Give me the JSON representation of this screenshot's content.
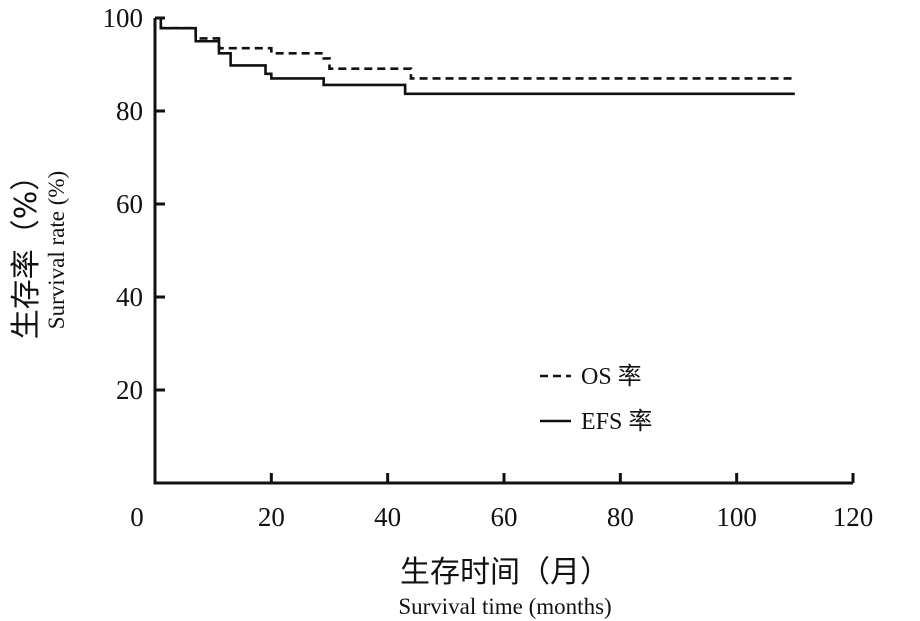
{
  "chart_data": {
    "type": "line",
    "xlabel_cn": "生存时间（月）",
    "xlabel": "Survival time (months)",
    "ylabel_cn": "生存率（%）",
    "ylabel": "Survival rate (%)",
    "xlim": [
      0,
      120
    ],
    "ylim": [
      0,
      100
    ],
    "x_ticks": [
      "0",
      "20",
      "40",
      "60",
      "80",
      "100",
      "120"
    ],
    "y_ticks": [
      "20",
      "40",
      "60",
      "80",
      "100"
    ],
    "legend_position": "bottom-right",
    "grid": false,
    "series": [
      {
        "name": "OS 率",
        "style": "dashed",
        "x": [
          0,
          1,
          7,
          10,
          11,
          20,
          29,
          30,
          44,
          110
        ],
        "y": [
          100,
          97.8,
          95.6,
          95.6,
          93.5,
          92.4,
          91.3,
          89.1,
          87.0,
          87.0
        ]
      },
      {
        "name": "EFS 率",
        "style": "solid",
        "x": [
          0,
          1,
          7,
          10,
          11,
          13,
          19,
          20,
          29,
          43,
          110
        ],
        "y": [
          100,
          97.8,
          95.0,
          95.0,
          92.4,
          89.8,
          88.0,
          87.0,
          85.6,
          83.7,
          83.7
        ]
      }
    ]
  }
}
